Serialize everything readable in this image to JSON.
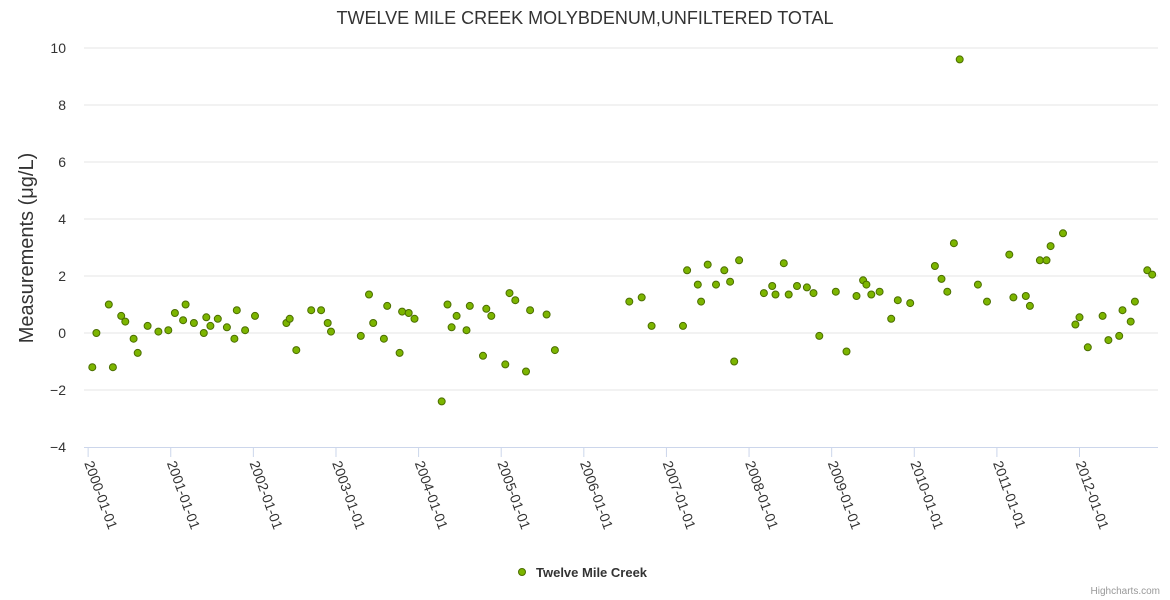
{
  "chart_data": {
    "type": "scatter",
    "title": "TWELVE MILE CREEK MOLYBDENUM,UNFILTERED TOTAL",
    "xlabel": "",
    "ylabel": "Measurements (μg/L)",
    "ylim": [
      -4,
      10
    ],
    "y_ticks": [
      "−4",
      "−2",
      "0",
      "2",
      "4",
      "6",
      "8",
      "10"
    ],
    "x_ticks": [
      "2000-01-01",
      "2001-01-01",
      "2002-01-01",
      "2003-01-01",
      "2004-01-01",
      "2005-01-01",
      "2006-01-01",
      "2007-01-01",
      "2008-01-01",
      "2009-01-01",
      "2010-01-01",
      "2011-01-01",
      "2012-01-01"
    ],
    "xlim_years": [
      1999.95,
      2012.95
    ],
    "grid": true,
    "legend_position": "bottom-center",
    "credits": "Highcharts.com",
    "series": [
      {
        "name": "Twelve Mile Creek",
        "color": "#7cb500",
        "border_color": "#4b6e00",
        "points": [
          [
            2000.05,
            -1.2
          ],
          [
            2000.1,
            0.0
          ],
          [
            2000.25,
            1.0
          ],
          [
            2000.3,
            -1.2
          ],
          [
            2000.4,
            0.6
          ],
          [
            2000.45,
            0.4
          ],
          [
            2000.55,
            -0.2
          ],
          [
            2000.6,
            -0.7
          ],
          [
            2000.72,
            0.25
          ],
          [
            2000.85,
            0.05
          ],
          [
            2000.97,
            0.1
          ],
          [
            2001.05,
            0.7
          ],
          [
            2001.15,
            0.45
          ],
          [
            2001.18,
            1.0
          ],
          [
            2001.28,
            0.35
          ],
          [
            2001.4,
            0.0
          ],
          [
            2001.43,
            0.55
          ],
          [
            2001.48,
            0.25
          ],
          [
            2001.57,
            0.5
          ],
          [
            2001.68,
            0.2
          ],
          [
            2001.77,
            -0.2
          ],
          [
            2001.8,
            0.8
          ],
          [
            2001.9,
            0.1
          ],
          [
            2002.02,
            0.6
          ],
          [
            2002.4,
            0.35
          ],
          [
            2002.44,
            0.5
          ],
          [
            2002.52,
            -0.6
          ],
          [
            2002.7,
            0.8
          ],
          [
            2002.82,
            0.8
          ],
          [
            2002.9,
            0.35
          ],
          [
            2002.94,
            0.05
          ],
          [
            2003.3,
            -0.1
          ],
          [
            2003.4,
            1.35
          ],
          [
            2003.45,
            0.35
          ],
          [
            2003.58,
            -0.2
          ],
          [
            2003.62,
            0.95
          ],
          [
            2003.77,
            -0.7
          ],
          [
            2003.8,
            0.75
          ],
          [
            2003.88,
            0.7
          ],
          [
            2003.95,
            0.5
          ],
          [
            2004.28,
            -2.4
          ],
          [
            2004.35,
            1.0
          ],
          [
            2004.4,
            0.2
          ],
          [
            2004.46,
            0.6
          ],
          [
            2004.58,
            0.1
          ],
          [
            2004.62,
            0.95
          ],
          [
            2004.78,
            -0.8
          ],
          [
            2004.82,
            0.85
          ],
          [
            2004.88,
            0.6
          ],
          [
            2005.05,
            -1.1
          ],
          [
            2005.1,
            1.4
          ],
          [
            2005.17,
            1.15
          ],
          [
            2005.3,
            -1.35
          ],
          [
            2005.35,
            0.8
          ],
          [
            2005.55,
            0.65
          ],
          [
            2005.65,
            -0.6
          ],
          [
            2006.55,
            1.1
          ],
          [
            2006.7,
            1.25
          ],
          [
            2006.82,
            0.25
          ],
          [
            2007.2,
            0.25
          ],
          [
            2007.25,
            2.2
          ],
          [
            2007.38,
            1.7
          ],
          [
            2007.42,
            1.1
          ],
          [
            2007.5,
            2.4
          ],
          [
            2007.6,
            1.7
          ],
          [
            2007.7,
            2.2
          ],
          [
            2007.77,
            1.8
          ],
          [
            2007.82,
            -1.0
          ],
          [
            2007.88,
            2.55
          ],
          [
            2008.18,
            1.4
          ],
          [
            2008.28,
            1.65
          ],
          [
            2008.32,
            1.35
          ],
          [
            2008.42,
            2.45
          ],
          [
            2008.48,
            1.35
          ],
          [
            2008.58,
            1.65
          ],
          [
            2008.7,
            1.6
          ],
          [
            2008.78,
            1.4
          ],
          [
            2008.85,
            -0.1
          ],
          [
            2009.05,
            1.45
          ],
          [
            2009.18,
            -0.65
          ],
          [
            2009.3,
            1.3
          ],
          [
            2009.38,
            1.85
          ],
          [
            2009.42,
            1.7
          ],
          [
            2009.48,
            1.35
          ],
          [
            2009.58,
            1.45
          ],
          [
            2009.72,
            0.5
          ],
          [
            2009.8,
            1.15
          ],
          [
            2009.95,
            1.05
          ],
          [
            2010.25,
            2.35
          ],
          [
            2010.33,
            1.9
          ],
          [
            2010.4,
            1.45
          ],
          [
            2010.48,
            3.15
          ],
          [
            2010.55,
            9.6
          ],
          [
            2010.77,
            1.7
          ],
          [
            2010.88,
            1.1
          ],
          [
            2011.15,
            2.75
          ],
          [
            2011.2,
            1.25
          ],
          [
            2011.35,
            1.3
          ],
          [
            2011.4,
            0.95
          ],
          [
            2011.52,
            2.55
          ],
          [
            2011.6,
            2.55
          ],
          [
            2011.65,
            3.05
          ],
          [
            2011.8,
            3.5
          ],
          [
            2011.95,
            0.3
          ],
          [
            2012.0,
            0.55
          ],
          [
            2012.1,
            -0.5
          ],
          [
            2012.28,
            0.6
          ],
          [
            2012.35,
            -0.25
          ],
          [
            2012.48,
            -0.1
          ],
          [
            2012.52,
            0.8
          ],
          [
            2012.62,
            0.4
          ],
          [
            2012.67,
            1.1
          ],
          [
            2012.82,
            2.2
          ],
          [
            2012.88,
            2.05
          ]
        ]
      }
    ]
  }
}
